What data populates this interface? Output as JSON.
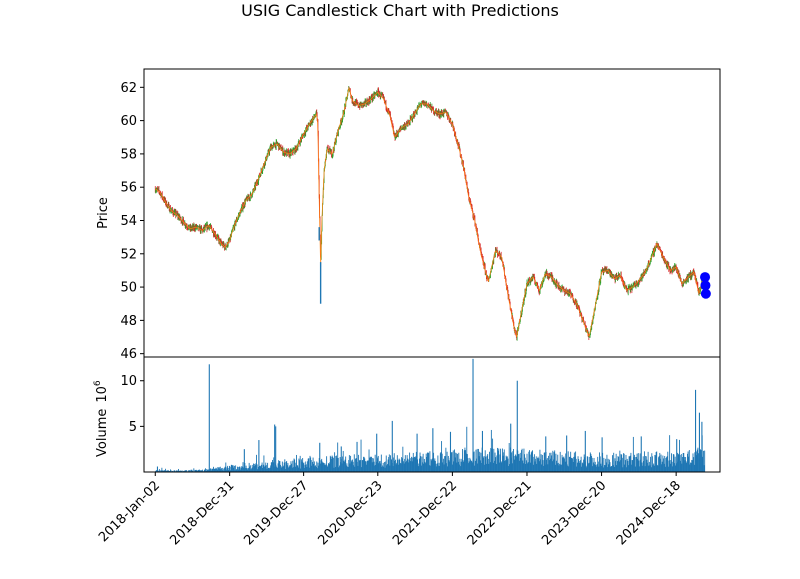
{
  "chart_data": {
    "type": "candlestick",
    "title": "USIG Candlestick Chart with Predictions",
    "price_panel": {
      "ylabel": "Price",
      "ylim": [
        45.8,
        63.1
      ],
      "yticks": [
        46,
        48,
        50,
        52,
        54,
        56,
        58,
        60,
        62
      ],
      "up_color": "#2ca02c",
      "down_color": "#d62728",
      "close_color": "#ff7f0e",
      "anomaly_color": "#1f77b4",
      "price_path": [
        [
          "2018-01-02",
          55.9
        ],
        [
          "2018-01-25",
          55.7
        ],
        [
          "2018-02-20",
          55.1
        ],
        [
          "2018-03-20",
          54.6
        ],
        [
          "2018-04-20",
          54.3
        ],
        [
          "2018-05-20",
          53.9
        ],
        [
          "2018-06-20",
          53.5
        ],
        [
          "2018-07-20",
          53.6
        ],
        [
          "2018-08-20",
          53.4
        ],
        [
          "2018-09-20",
          53.7
        ],
        [
          "2018-10-20",
          53.2
        ],
        [
          "2018-11-20",
          52.6
        ],
        [
          "2018-12-10",
          52.4
        ],
        [
          "2018-12-31",
          52.8
        ],
        [
          "2019-01-20",
          53.6
        ],
        [
          "2019-02-20",
          54.5
        ],
        [
          "2019-03-20",
          55.2
        ],
        [
          "2019-04-20",
          55.6
        ],
        [
          "2019-05-20",
          56.5
        ],
        [
          "2019-06-20",
          57.5
        ],
        [
          "2019-07-20",
          58.4
        ],
        [
          "2019-08-20",
          58.6
        ],
        [
          "2019-09-20",
          58.1
        ],
        [
          "2019-10-20",
          58.0
        ],
        [
          "2019-11-20",
          58.3
        ],
        [
          "2019-12-27",
          59.2
        ],
        [
          "2020-01-25",
          59.8
        ],
        [
          "2020-02-28",
          60.4
        ],
        [
          "2020-03-05",
          59.8
        ],
        [
          "2020-03-10",
          56.5
        ],
        [
          "2020-03-19",
          51.2
        ],
        [
          "2020-03-25",
          54.0
        ],
        [
          "2020-04-05",
          57.0
        ],
        [
          "2020-04-20",
          58.3
        ],
        [
          "2020-05-15",
          58.0
        ],
        [
          "2020-06-10",
          59.3
        ],
        [
          "2020-07-10",
          60.5
        ],
        [
          "2020-08-05",
          62.0
        ],
        [
          "2020-08-20",
          61.2
        ],
        [
          "2020-09-20",
          60.9
        ],
        [
          "2020-10-20",
          61.0
        ],
        [
          "2020-11-20",
          61.3
        ],
        [
          "2020-12-23",
          61.7
        ],
        [
          "2021-01-20",
          61.3
        ],
        [
          "2021-02-20",
          60.3
        ],
        [
          "2021-03-15",
          59.0
        ],
        [
          "2021-04-20",
          59.6
        ],
        [
          "2021-05-20",
          59.8
        ],
        [
          "2021-06-20",
          60.4
        ],
        [
          "2021-07-20",
          61.0
        ],
        [
          "2021-08-20",
          61.0
        ],
        [
          "2021-09-20",
          60.6
        ],
        [
          "2021-10-20",
          60.4
        ],
        [
          "2021-11-20",
          60.5
        ],
        [
          "2021-12-22",
          59.8
        ],
        [
          "2022-01-20",
          58.5
        ],
        [
          "2022-02-15",
          57.2
        ],
        [
          "2022-03-10",
          55.5
        ],
        [
          "2022-04-10",
          54.0
        ],
        [
          "2022-05-10",
          52.0
        ],
        [
          "2022-06-15",
          50.3
        ],
        [
          "2022-07-20",
          52.2
        ],
        [
          "2022-08-20",
          51.8
        ],
        [
          "2022-09-20",
          49.5
        ],
        [
          "2022-10-20",
          47.5
        ],
        [
          "2022-11-01",
          47.0
        ],
        [
          "2022-11-25",
          48.6
        ],
        [
          "2022-12-21",
          50.2
        ],
        [
          "2023-01-20",
          50.6
        ],
        [
          "2023-02-20",
          49.8
        ],
        [
          "2023-03-20",
          50.8
        ],
        [
          "2023-04-20",
          50.6
        ],
        [
          "2023-05-20",
          50.1
        ],
        [
          "2023-06-20",
          49.8
        ],
        [
          "2023-07-20",
          49.6
        ],
        [
          "2023-08-20",
          49.0
        ],
        [
          "2023-09-20",
          48.0
        ],
        [
          "2023-10-20",
          47.0
        ],
        [
          "2023-11-15",
          48.6
        ],
        [
          "2023-12-20",
          50.9
        ],
        [
          "2024-01-20",
          51.0
        ],
        [
          "2024-02-20",
          50.5
        ],
        [
          "2024-03-20",
          50.7
        ],
        [
          "2024-04-20",
          49.8
        ],
        [
          "2024-05-20",
          50.0
        ],
        [
          "2024-06-20",
          50.4
        ],
        [
          "2024-07-20",
          50.9
        ],
        [
          "2024-08-20",
          51.8
        ],
        [
          "2024-09-15",
          52.6
        ],
        [
          "2024-10-20",
          51.7
        ],
        [
          "2024-11-20",
          51.0
        ],
        [
          "2024-12-18",
          51.2
        ],
        [
          "2025-01-15",
          50.2
        ],
        [
          "2025-02-15",
          50.6
        ],
        [
          "2025-03-15",
          50.9
        ],
        [
          "2025-04-08",
          49.6
        ],
        [
          "2025-04-25",
          50.4
        ],
        [
          "2025-05-05",
          50.3
        ]
      ],
      "anomalies": [
        [
          "2020-03-19",
          49.0,
          51.5
        ],
        [
          "2020-03-12",
          52.8,
          53.6
        ]
      ],
      "predictions": [
        [
          "2025-05-08",
          50.6
        ],
        [
          "2025-05-10",
          50.1
        ],
        [
          "2025-05-12",
          49.6
        ]
      ],
      "prediction_color": "#0000ff"
    },
    "volume_panel": {
      "ylabel": "Volume",
      "scale_label": "10",
      "scale_exponent": "6",
      "ylim": [
        0,
        12.6
      ],
      "yticks": [
        5,
        10
      ],
      "bar_color": "#1f77b4",
      "level_path": [
        [
          "2018-01-02",
          0.15
        ],
        [
          "2018-06-01",
          0.15
        ],
        [
          "2018-09-01",
          0.2
        ],
        [
          "2018-12-31",
          0.5
        ],
        [
          "2019-06-01",
          0.8
        ],
        [
          "2019-12-27",
          1.0
        ],
        [
          "2020-06-01",
          1.2
        ],
        [
          "2020-12-23",
          1.3
        ],
        [
          "2021-06-01",
          1.4
        ],
        [
          "2021-12-22",
          1.6
        ],
        [
          "2022-06-01",
          1.8
        ],
        [
          "2022-12-21",
          1.7
        ],
        [
          "2023-06-01",
          1.5
        ],
        [
          "2023-12-20",
          1.4
        ],
        [
          "2024-06-01",
          1.4
        ],
        [
          "2024-12-18",
          1.5
        ],
        [
          "2025-05-10",
          1.8
        ]
      ],
      "spikes": [
        [
          "2018-01-10",
          0.6
        ],
        [
          "2018-09-20",
          11.8
        ],
        [
          "2019-03-10",
          2.5
        ],
        [
          "2019-05-20",
          3.5
        ],
        [
          "2019-08-05",
          5.2
        ],
        [
          "2019-08-10",
          5.0
        ],
        [
          "2020-03-12",
          3.2
        ],
        [
          "2020-06-25",
          2.8
        ],
        [
          "2020-09-10",
          3.3
        ],
        [
          "2020-12-15",
          4.2
        ],
        [
          "2021-03-01",
          5.6
        ],
        [
          "2021-06-30",
          4.2
        ],
        [
          "2021-09-15",
          4.8
        ],
        [
          "2021-12-10",
          4.4
        ],
        [
          "2022-03-30",
          12.4
        ],
        [
          "2022-05-15",
          4.5
        ],
        [
          "2022-09-30",
          5.3
        ],
        [
          "2022-11-01",
          10.0
        ],
        [
          "2023-03-20",
          3.9
        ],
        [
          "2023-06-30",
          4.0
        ],
        [
          "2023-09-29",
          4.5
        ],
        [
          "2023-12-20",
          3.8
        ],
        [
          "2024-06-28",
          3.9
        ],
        [
          "2024-12-18",
          3.6
        ],
        [
          "2025-03-20",
          9.0
        ],
        [
          "2025-04-08",
          6.5
        ],
        [
          "2025-04-20",
          5.5
        ]
      ]
    },
    "x_axis": {
      "start": "2017-11-08",
      "end": "2025-07-20",
      "tick_labels": [
        "2018-Jan-02",
        "2018-Dec-31",
        "2019-Dec-27",
        "2020-Dec-23",
        "2021-Dec-22",
        "2022-Dec-21",
        "2023-Dec-20",
        "2024-Dec-18"
      ],
      "tick_dates": [
        "2018-01-02",
        "2018-12-31",
        "2019-12-27",
        "2020-12-23",
        "2021-12-22",
        "2022-12-21",
        "2023-12-20",
        "2024-12-18"
      ],
      "last_date": "2025-05-05"
    }
  }
}
